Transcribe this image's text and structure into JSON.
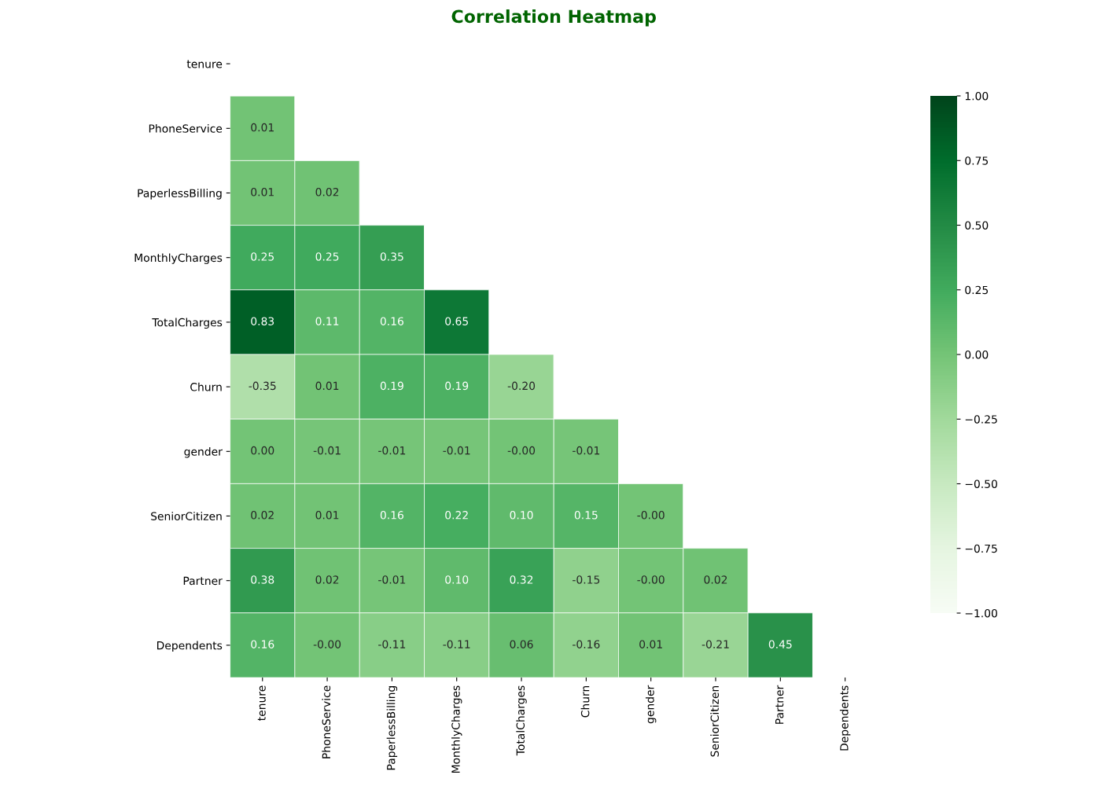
{
  "chart_data": {
    "type": "heatmap",
    "title": "Correlation Heatmap",
    "categories": [
      "tenure",
      "PhoneService",
      "PaperlessBilling",
      "MonthlyCharges",
      "TotalCharges",
      "Churn",
      "gender",
      "SeniorCitizen",
      "Partner",
      "Dependents"
    ],
    "y_categories": [
      "tenure",
      "PhoneService",
      "PaperlessBilling",
      "MonthlyCharges",
      "TotalCharges",
      "Churn",
      "gender",
      "SeniorCitizen",
      "Partner",
      "Dependents"
    ],
    "cells": [
      [
        null,
        null,
        null,
        null,
        null,
        null,
        null,
        null,
        null,
        null
      ],
      [
        0.01,
        null,
        null,
        null,
        null,
        null,
        null,
        null,
        null,
        null
      ],
      [
        0.01,
        0.02,
        null,
        null,
        null,
        null,
        null,
        null,
        null,
        null
      ],
      [
        0.25,
        0.25,
        0.35,
        null,
        null,
        null,
        null,
        null,
        null,
        null
      ],
      [
        0.83,
        0.11,
        0.16,
        0.65,
        null,
        null,
        null,
        null,
        null,
        null
      ],
      [
        -0.35,
        0.01,
        0.19,
        0.19,
        -0.2,
        null,
        null,
        null,
        null,
        null
      ],
      [
        0.0,
        -0.01,
        -0.01,
        -0.01,
        0.0,
        -0.01,
        null,
        null,
        null,
        null
      ],
      [
        0.02,
        0.01,
        0.16,
        0.22,
        0.1,
        0.15,
        0.0,
        null,
        null,
        null
      ],
      [
        0.38,
        0.02,
        -0.01,
        0.1,
        0.32,
        -0.15,
        0.0,
        0.02,
        null,
        null
      ],
      [
        0.16,
        0.0,
        -0.11,
        -0.11,
        0.06,
        -0.16,
        0.01,
        -0.21,
        0.45,
        null
      ]
    ],
    "cell_labels": [
      [
        null,
        null,
        null,
        null,
        null,
        null,
        null,
        null,
        null,
        null
      ],
      [
        "0.01",
        null,
        null,
        null,
        null,
        null,
        null,
        null,
        null,
        null
      ],
      [
        "0.01",
        "0.02",
        null,
        null,
        null,
        null,
        null,
        null,
        null,
        null
      ],
      [
        "0.25",
        "0.25",
        "0.35",
        null,
        null,
        null,
        null,
        null,
        null,
        null
      ],
      [
        "0.83",
        "0.11",
        "0.16",
        "0.65",
        null,
        null,
        null,
        null,
        null,
        null
      ],
      [
        "-0.35",
        "0.01",
        "0.19",
        "0.19",
        "-0.20",
        null,
        null,
        null,
        null,
        null
      ],
      [
        "0.00",
        "-0.01",
        "-0.01",
        "-0.01",
        "-0.00",
        "-0.01",
        null,
        null,
        null,
        null
      ],
      [
        "0.02",
        "0.01",
        "0.16",
        "0.22",
        "0.10",
        "0.15",
        "-0.00",
        null,
        null,
        null
      ],
      [
        "0.38",
        "0.02",
        "-0.01",
        "0.10",
        "0.32",
        "-0.15",
        "-0.00",
        "0.02",
        null,
        null
      ],
      [
        "0.16",
        "-0.00",
        "-0.11",
        "-0.11",
        "0.06",
        "-0.16",
        "0.01",
        "-0.21",
        "0.45",
        null
      ]
    ],
    "clim": [
      -1,
      1
    ],
    "cticks": [
      {
        "value": -1,
        "label": "−1.00"
      },
      {
        "value": -0.75,
        "label": "−0.75"
      },
      {
        "value": -0.5,
        "label": "−0.50"
      },
      {
        "value": -0.25,
        "label": "−0.25"
      },
      {
        "value": 0,
        "label": "0.00"
      },
      {
        "value": 0.25,
        "label": "0.25"
      },
      {
        "value": 0.5,
        "label": "0.50"
      },
      {
        "value": 0.75,
        "label": "0.75"
      },
      {
        "value": 1,
        "label": "1.00"
      }
    ]
  }
}
